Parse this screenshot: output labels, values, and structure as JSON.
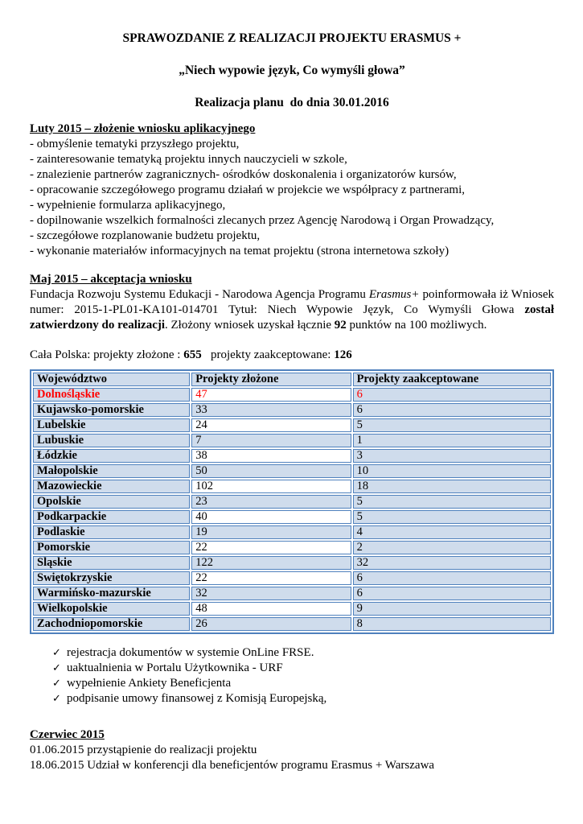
{
  "doc": {
    "title": "SPRAWOZDANIE Z REALIZACJI PROJEKTU ERASMUS +",
    "subtitle": "„Niech wypowie język, Co wymyśli głowa”",
    "plan_line": "Realizacja planu  do dnia 30.01.2016"
  },
  "february": {
    "heading": "Luty 2015 – złożenie wniosku aplikacyjnego",
    "items": [
      "- obmyślenie tematyki przyszłego projektu,",
      "- zainteresowanie tematyką projektu innych nauczycieli w szkole,",
      "- znalezienie partnerów zagranicznych- ośrodków doskonalenia i organizatorów kursów,",
      "- opracowanie szczegółowego programu działań w projekcie we współpracy z partnerami,",
      "- wypełnienie formularza aplikacyjnego,",
      "- dopilnowanie wszelkich formalności zlecanych przez Agencję Narodową i Organ Prowadzący,",
      "- szczegółowe rozplanowanie budżetu projektu,",
      "- wykonanie materiałów informacyjnych na temat projektu (strona internetowa szkoły)"
    ]
  },
  "may": {
    "heading": "Maj 2015 – akceptacja wniosku",
    "para": {
      "p1": "Fundacja Rozwoju Systemu Edukacji - Narodowa Agencja Programu ",
      "p2_italic": "Erasmus+",
      "p3": " poinformowała iż Wniosek numer: 2015-1-PL01-KA101-014701 Tytuł: Niech Wypowie Język, Co Wymyśli Głowa ",
      "p4_bold": "został zatwierdzony do realizacji",
      "p5": ". Złożony wniosek uzyskał łącznie ",
      "p6_bold": "92",
      "p7": " punktów na 100 możliwych."
    },
    "poland_stats": {
      "s1": "Cała Polska: projekty złożone : ",
      "s2_bold": "655",
      "s3": "   projekty zaakceptowane: ",
      "s4_bold": "126"
    }
  },
  "table": {
    "headers": [
      "Województwo",
      "Projekty złożone",
      "Projekty zaakceptowane"
    ],
    "cell_fill_color": "#cfdcec",
    "border_color": "#4f81bd",
    "highlight_color": "#ff0000",
    "rows": [
      {
        "voivodeship": "Dolnośląskie",
        "submitted": "47",
        "accepted": "6",
        "highlighted": true
      },
      {
        "voivodeship": "Kujawsko-pomorskie",
        "submitted": "33",
        "accepted": "6"
      },
      {
        "voivodeship": "Lubelskie",
        "submitted": "24",
        "accepted": "5"
      },
      {
        "voivodeship": "Lubuskie",
        "submitted": "7",
        "accepted": "1"
      },
      {
        "voivodeship": "Łódzkie",
        "submitted": "38",
        "accepted": "3"
      },
      {
        "voivodeship": "Małopolskie",
        "submitted": "50",
        "accepted": "10"
      },
      {
        "voivodeship": "Mazowieckie",
        "submitted": "102",
        "accepted": "18"
      },
      {
        "voivodeship": "Opolskie",
        "submitted": "23",
        "accepted": "5"
      },
      {
        "voivodeship": "Podkarpackie",
        "submitted": "40",
        "accepted": "5"
      },
      {
        "voivodeship": "Podlaskie",
        "submitted": "19",
        "accepted": "4"
      },
      {
        "voivodeship": "Pomorskie",
        "submitted": "22",
        "accepted": "2"
      },
      {
        "voivodeship": "Śląskie",
        "submitted": "122",
        "accepted": "32"
      },
      {
        "voivodeship": "Świętokrzyskie",
        "submitted": "22",
        "accepted": "6"
      },
      {
        "voivodeship": "Warmińsko-mazurskie",
        "submitted": "32",
        "accepted": "6"
      },
      {
        "voivodeship": "Wielkopolskie",
        "submitted": "48",
        "accepted": "9"
      },
      {
        "voivodeship": "Zachodniopomorskie",
        "submitted": "26",
        "accepted": "8"
      }
    ]
  },
  "checklist": {
    "items": [
      "rejestracja dokumentów w systemie OnLine FRSE.",
      "uaktualnienia w Portalu Użytkownika - URF",
      "wypełnienie Ankiety Beneficjenta",
      "podpisanie umowy finansowej z Komisją Europejską,"
    ]
  },
  "june": {
    "heading": "Czerwiec 2015",
    "lines": [
      "01.06.2015 przystąpienie do realizacji projektu",
      "18.06.2015 Udział w konferencji dla beneficjentów programu Erasmus + Warszawa"
    ]
  },
  "icons": {
    "check": "✓"
  }
}
